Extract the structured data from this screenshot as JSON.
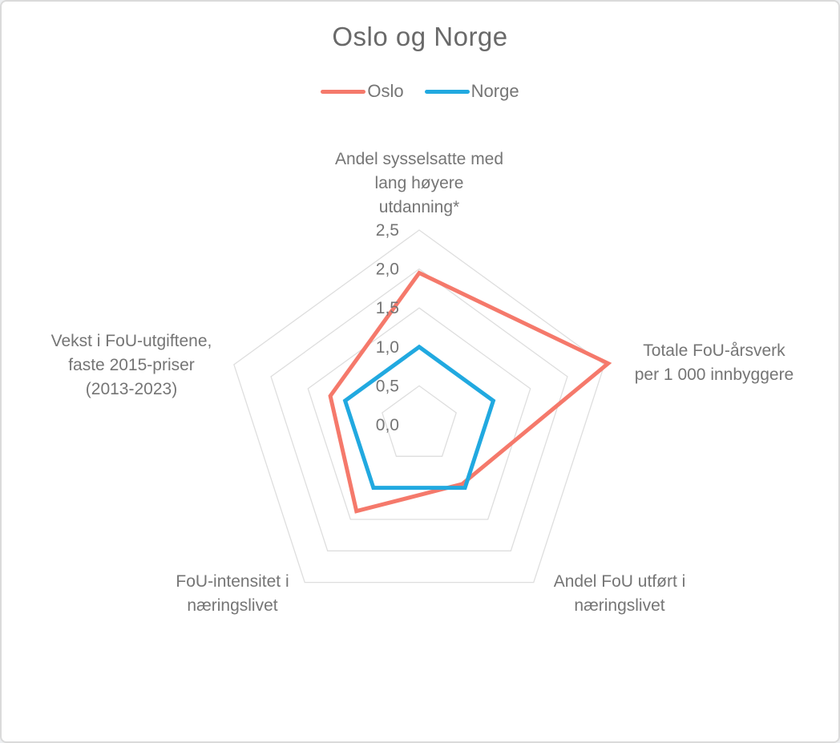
{
  "title": "Oslo og Norge",
  "colors": {
    "background": "#FFFFFF",
    "card_border": "#DADADA",
    "grid": "#DEDEDE",
    "text": "#757575",
    "title_text": "#696969",
    "oslo_series": "#F5796B",
    "norge_series": "#21A9E0"
  },
  "legend": {
    "position": "top",
    "items": [
      "Oslo",
      "Norge"
    ]
  },
  "chart_data": {
    "type": "radar",
    "title": "Oslo og Norge",
    "categories": [
      "Andel sysselsatte med\nlang høyere\nutdanning*",
      "Totale FoU-årsverk\nper 1 000 innbyggere",
      "Andel FoU utført i\nnæringslivet",
      "FoU-intensitet i\nnæringslivet",
      "Vekst i FoU-utgiftene,\nfaste 2015-priser\n(2013-2023)"
    ],
    "series": [
      {
        "name": "Oslo",
        "color": "#F5796B",
        "values": [
          1.95,
          2.55,
          0.94,
          1.37,
          1.2
        ]
      },
      {
        "name": "Norge",
        "color": "#21A9E0",
        "values": [
          1.0,
          1.0,
          1.0,
          1.0,
          1.0
        ]
      }
    ],
    "radial_axis": {
      "min": 0,
      "max": 2.5,
      "tick_interval": 0.5,
      "ticks": [
        {
          "label": "0,0",
          "value": 0
        },
        {
          "label": "0,5",
          "value": 0.5
        },
        {
          "label": "1,0",
          "value": 1.0
        },
        {
          "label": "1,5",
          "value": 1.5
        },
        {
          "label": "2,0",
          "value": 2.0
        },
        {
          "label": "2,5",
          "value": 2.5
        }
      ]
    },
    "grid_rings": [
      0.5,
      1.0,
      1.5,
      2.0,
      2.5
    ],
    "grid_shape": "pentagon",
    "legend_position": "top"
  }
}
